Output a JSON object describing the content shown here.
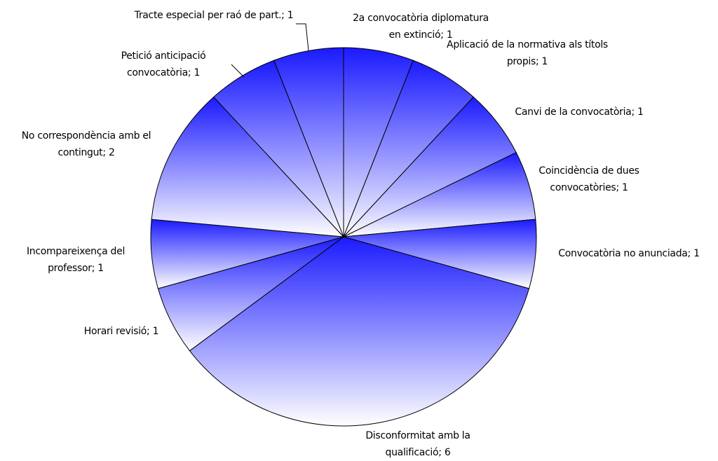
{
  "chart_data": {
    "type": "pie",
    "labels": [
      "2a convocatòria diplomatura en extinció; 1",
      "Aplicació de la normativa als títols propis; 1",
      "Canvi de la convocatòria; 1",
      "Coincidència de dues convocatòries; 1",
      "Convocatòria no anunciada; 1",
      "Disconformitat amb la qualificació; 6",
      "Horari revisió; 1",
      "Incompareixença del professor; 1",
      "No correspondència amb el contingut; 2",
      "Petició anticipació convocatòria; 1",
      "Tracte especial per raó de part.; 1"
    ],
    "values": [
      1,
      1,
      1,
      1,
      1,
      6,
      1,
      1,
      2,
      1,
      1
    ],
    "color": "#1a1aff"
  }
}
